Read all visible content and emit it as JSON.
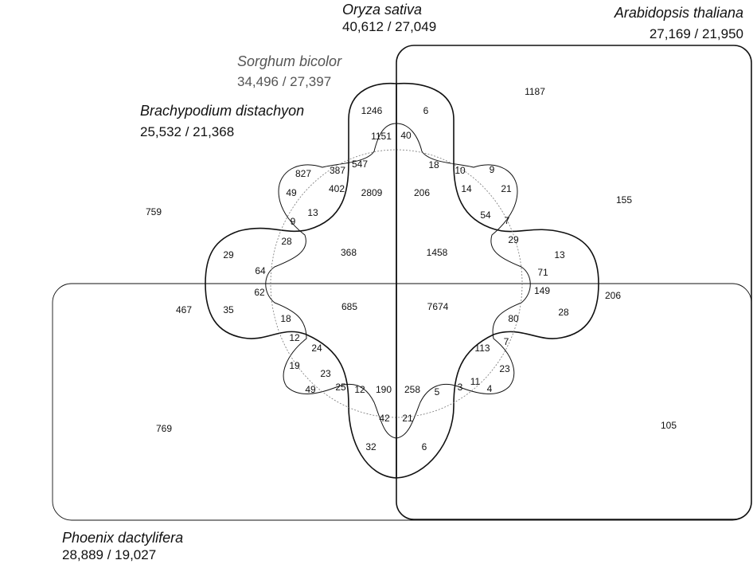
{
  "species": [
    {
      "id": "oryza",
      "name": "Oryza sativa",
      "count": "40,612 / 27,049"
    },
    {
      "id": "arabidopsis",
      "name": "Arabidopsis thaliana",
      "count": "27,169 / 21,950"
    },
    {
      "id": "sorghum",
      "name": "Sorghum bicolor",
      "count": "34,496 / 27,397"
    },
    {
      "id": "brachypodium",
      "name": "Brachypodium distachyon",
      "count": "25,532 / 21,368"
    },
    {
      "id": "phoenix",
      "name": "Phoenix dactylifera",
      "count": "28,889 / 19,027"
    }
  ],
  "regions": [
    "1246",
    "6",
    "1187",
    "1151",
    "40",
    "827",
    "387",
    "547",
    "18",
    "10",
    "9",
    "49",
    "402",
    "2809",
    "206",
    "14",
    "21",
    "155",
    "759",
    "9",
    "13",
    "54",
    "7",
    "28",
    "29",
    "29",
    "368",
    "1458",
    "13",
    "64",
    "71",
    "62",
    "685",
    "7674",
    "149",
    "206",
    "467",
    "35",
    "18",
    "80",
    "28",
    "12",
    "24",
    "113",
    "7",
    "19",
    "23",
    "23",
    "49",
    "25",
    "12",
    "190",
    "258",
    "5",
    "3",
    "11",
    "4",
    "769",
    "42",
    "21",
    "105",
    "32",
    "6"
  ]
}
